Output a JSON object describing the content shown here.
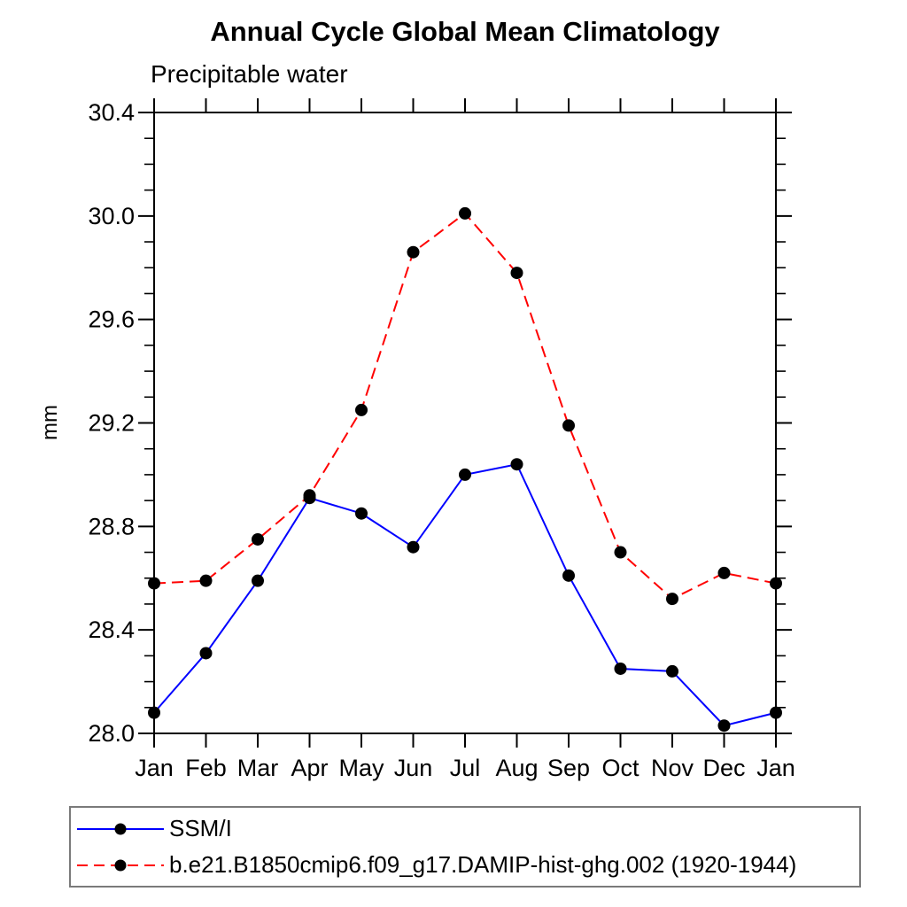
{
  "page": {
    "background": "#ffffff",
    "text_color": "#000000"
  },
  "chart_data": {
    "type": "line",
    "title": "Annual Cycle Global Mean Climatology",
    "subtitle": "Precipitable water",
    "xlabel": "",
    "ylabel": "mm",
    "x_categories": [
      "Jan",
      "Feb",
      "Mar",
      "Apr",
      "May",
      "Jun",
      "Jul",
      "Aug",
      "Sep",
      "Oct",
      "Nov",
      "Dec",
      "Jan"
    ],
    "ylim": [
      28.0,
      30.4
    ],
    "ytick_major_step": 0.4,
    "ytick_minor_step": 0.1,
    "ytick_labels": [
      "28.0",
      "28.4",
      "28.8",
      "29.2",
      "29.6",
      "30.0",
      "30.4"
    ],
    "grid": false,
    "frame_color": "#000000",
    "marker": "filled-circle",
    "marker_color": "#000000",
    "legend_position": "bottom",
    "series": [
      {
        "name": "SSM/I",
        "color": "#0000ff",
        "line_style": "solid",
        "values": [
          28.08,
          28.31,
          28.59,
          28.91,
          28.85,
          28.72,
          29.0,
          29.04,
          28.61,
          28.25,
          28.24,
          28.03,
          28.08
        ]
      },
      {
        "name": "b.e21.B1850cmip6.f09_g17.DAMIP-hist-ghg.002 (1920-1944)",
        "color": "#ff0000",
        "line_style": "dashed",
        "values": [
          28.58,
          28.59,
          28.75,
          28.92,
          29.25,
          29.86,
          30.01,
          29.78,
          29.19,
          28.7,
          28.52,
          28.62,
          28.58
        ]
      }
    ]
  }
}
